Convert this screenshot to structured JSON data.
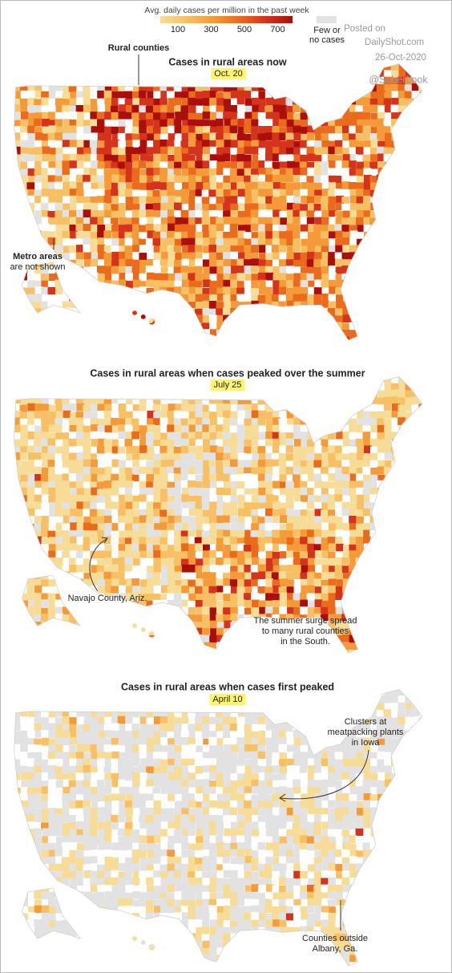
{
  "legend": {
    "title": "Avg. daily cases per million in the past week",
    "ticks": [
      100,
      300,
      500,
      700
    ],
    "colors": [
      "#f6dc97",
      "#f8c064",
      "#f49a39",
      "#eb6b1d",
      "#d4331c",
      "#ab0f0b"
    ],
    "none_label": [
      "Few or",
      "no cases"
    ],
    "none_color": "#e2e2e2"
  },
  "watermark": {
    "posted": "Posted on",
    "site": "DailyShot.com",
    "date": "26-Oct-2020",
    "handle": "@SoberLook"
  },
  "panels": [
    {
      "title": "Cases in rural areas now",
      "date": "Oct. 20",
      "annotations": [
        {
          "label": "Rural counties"
        },
        {
          "label": "Metro areas",
          "note": "are not shown"
        }
      ]
    },
    {
      "title": "Cases in rural areas when cases peaked over the summer",
      "date": "July 25",
      "annotations": [
        {
          "label": "Navajo County, Ariz."
        },
        {
          "lines": [
            "The summer surge spread",
            "to many rural counties",
            "in the South."
          ]
        }
      ]
    },
    {
      "title": "Cases in rural areas when cases first peaked",
      "date": "April 10",
      "annotations": [
        {
          "lines": [
            "Clusters at",
            "meatpacking plants",
            "in Iowa"
          ]
        },
        {
          "lines": [
            "Counties outside",
            "Albany, Ga."
          ]
        }
      ]
    }
  ]
}
